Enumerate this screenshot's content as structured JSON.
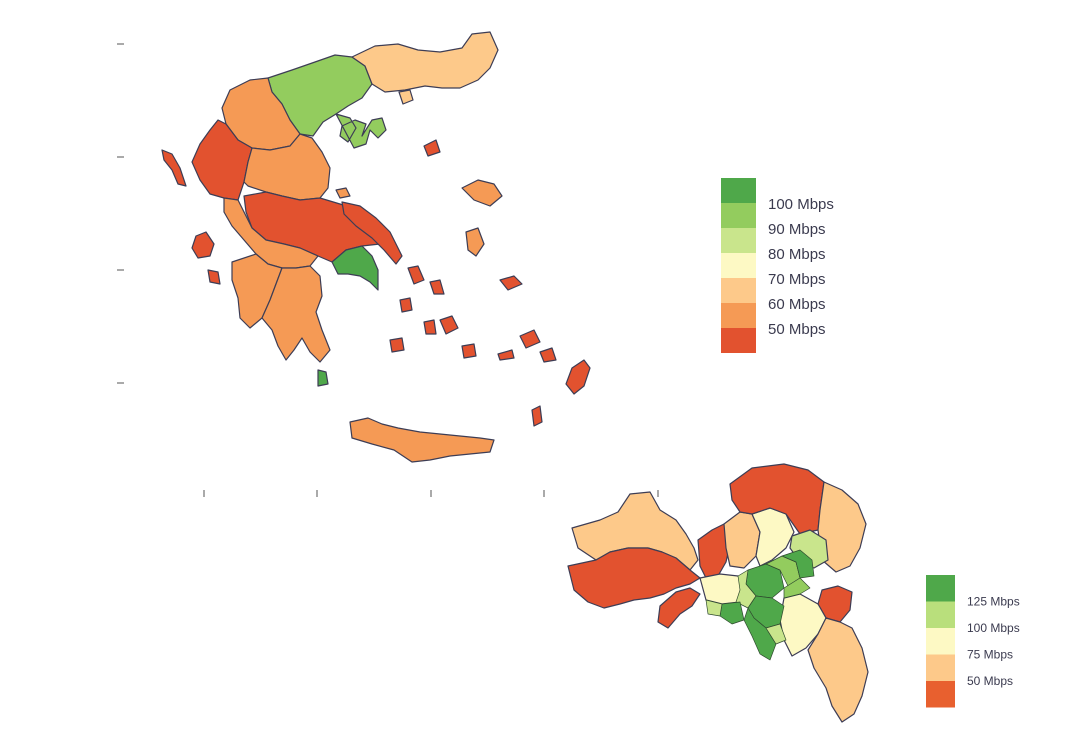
{
  "colors": {
    "green_dark": "#4fa84a",
    "green_mid": "#93cc5e",
    "green_light": "#c9e58c",
    "yellow_pale": "#fdf9c4",
    "orange_light": "#fdc98a",
    "orange": "#f59a55",
    "red_orange": "#e2522f"
  },
  "greece_legend": {
    "labels": [
      "100 Mbps",
      "90 Mbps",
      "80 Mbps",
      "70 Mbps",
      "60 Mbps",
      "50 Mbps"
    ],
    "colors": [
      "#4fa84a",
      "#93cc5e",
      "#c9e58c",
      "#fdf9c4",
      "#fdc98a",
      "#f59a55",
      "#e2522f"
    ]
  },
  "attica_legend": {
    "labels": [
      "125 Mbps",
      "100 Mbps",
      "75 Mbps",
      "50 Mbps"
    ],
    "colors": [
      "#4fa84a",
      "#b9df7c",
      "#fdf9c4",
      "#fdc98a",
      "#e8602f"
    ]
  }
}
